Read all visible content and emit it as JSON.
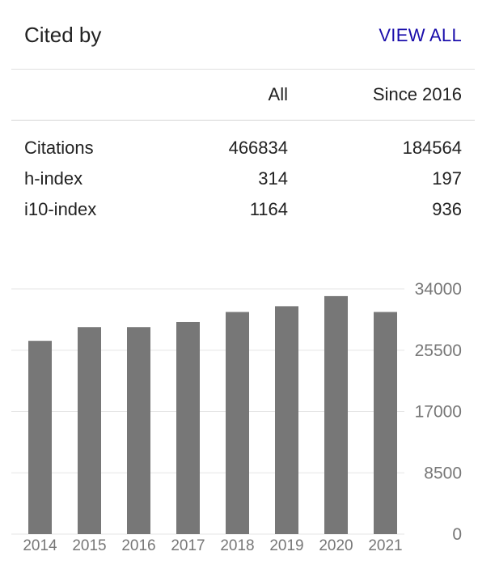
{
  "header": {
    "title": "Cited by",
    "view_all_label": "VIEW ALL"
  },
  "table": {
    "columns": [
      "All",
      "Since 2016"
    ],
    "rows": [
      {
        "label": "Citations",
        "all": "466834",
        "since": "184564"
      },
      {
        "label": "h-index",
        "all": "314",
        "since": "197"
      },
      {
        "label": "i10-index",
        "all": "1164",
        "since": "936"
      }
    ]
  },
  "chart_data": {
    "type": "bar",
    "categories": [
      "2014",
      "2015",
      "2016",
      "2017",
      "2018",
      "2019",
      "2020",
      "2021"
    ],
    "values": [
      26800,
      28700,
      28700,
      29400,
      30800,
      31600,
      33000,
      30800
    ],
    "yticks": [
      "34000",
      "25500",
      "17000",
      "8500",
      "0"
    ],
    "ylim": [
      0,
      34000
    ],
    "bar_color": "#777777",
    "grid": true
  },
  "colors": {
    "link": "#1a0dab",
    "bar": "#777777",
    "grid": "#e6e6e6"
  }
}
